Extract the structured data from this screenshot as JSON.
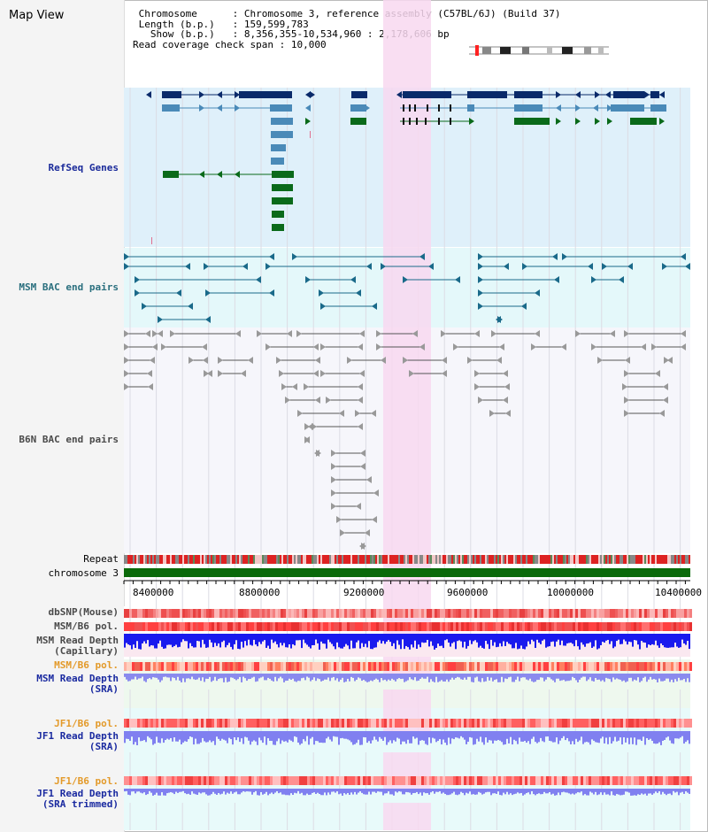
{
  "title": "Map View",
  "info": {
    "chromosome_label": "Chromosome",
    "chromosome_value": "Chromosome 3, reference assembly (C57BL/6J) (Build 37)",
    "length_label": "Length (b.p.)",
    "length_value": "159,599,783",
    "show_label": "Show (b.p.)",
    "show_value": "8,356,355-10,534,960 : 2,178,606 bp",
    "read_label": "Read coverage check span",
    "read_value": "10,000"
  },
  "tracks": {
    "refseq": "RefSeq Genes",
    "msm_bac": "MSM BAC end pairs",
    "b6n_bac": "B6N BAC end pairs",
    "repeat": "Repeat",
    "chromosome": "chromosome 3",
    "dbsnp": "dbSNP(Mouse)",
    "msm_pol": "MSM/B6 pol.",
    "msm_depth_cap_1": "MSM Read Depth",
    "msm_depth_cap_2": "(Capillary)",
    "msm_pol_sra": "MSM/B6 pol.",
    "msm_depth_sra_1": "MSM Read Depth",
    "msm_depth_sra_2": "(SRA)",
    "jf1_pol": "JF1/B6 pol.",
    "jf1_depth_1": "JF1 Read Depth",
    "jf1_depth_2": "(SRA)",
    "jf1_pol2": "JF1/B6 pol.",
    "jf1_trim_1": "JF1 Read Depth",
    "jf1_trim_2": "(SRA trimmed)"
  },
  "axis": {
    "ticks": [
      "8400000",
      "8800000",
      "9200000",
      "9600000",
      "10000000",
      "10400000"
    ]
  },
  "colors": {
    "refseq_bg": "#dff0fa",
    "msm_bg": "#e4f8fa",
    "highlight": "#f8d8f0",
    "gene_navy": "#0a2a6a",
    "gene_steel": "#4a8ab8",
    "gene_green": "#0a6a1a",
    "msm_line": "#1a6a8a",
    "b6n_line": "#555555",
    "chromosome": "#0a6a0a",
    "repeat_red": "#dd2222"
  }
}
